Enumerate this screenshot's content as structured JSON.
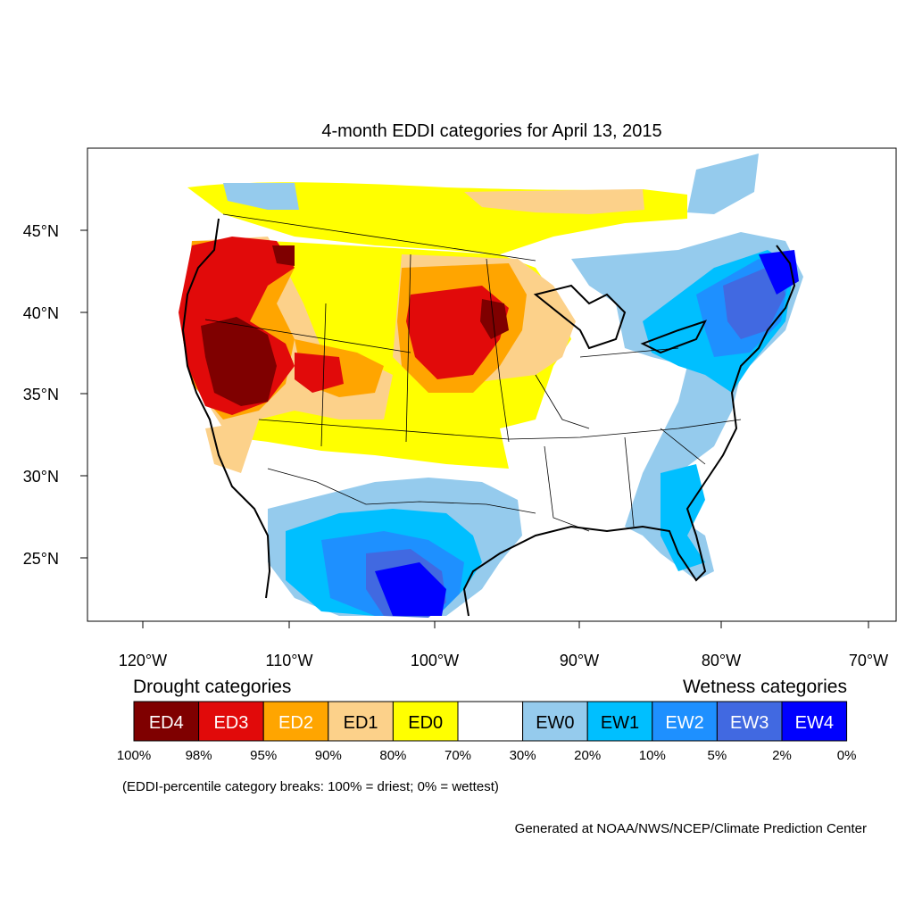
{
  "title": "4-month EDDI categories for April 13, 2015",
  "lat_labels": [
    "45°N",
    "40°N",
    "35°N",
    "30°N",
    "25°N"
  ],
  "lon_labels": [
    "120°W",
    "110°W",
    "100°W",
    "90°W",
    "80°W",
    "70°W"
  ],
  "legend": {
    "drought_heading": "Drought categories",
    "wetness_heading": "Wetness categories",
    "categories": [
      {
        "label": "ED4",
        "color": "#7f0000",
        "text_color": "#ffffff"
      },
      {
        "label": "ED3",
        "color": "#e10a0a",
        "text_color": "#ffffff"
      },
      {
        "label": "ED2",
        "color": "#ffa500",
        "text_color": "#ffffff"
      },
      {
        "label": "ED1",
        "color": "#fcd18a",
        "text_color": "#000000"
      },
      {
        "label": "ED0",
        "color": "#ffff00",
        "text_color": "#000000"
      },
      {
        "label": "",
        "color": "#ffffff",
        "text_color": "#000000"
      },
      {
        "label": "EW0",
        "color": "#95cbed",
        "text_color": "#000000"
      },
      {
        "label": "EW1",
        "color": "#00bfff",
        "text_color": "#000000"
      },
      {
        "label": "EW2",
        "color": "#1e90ff",
        "text_color": "#ffffff"
      },
      {
        "label": "EW3",
        "color": "#4169e1",
        "text_color": "#ffffff"
      },
      {
        "label": "EW4",
        "color": "#0000ff",
        "text_color": "#ffffff"
      }
    ],
    "breaks": [
      "100%",
      "98%",
      "95%",
      "90%",
      "80%",
      "70%",
      "30%",
      "20%",
      "10%",
      "5%",
      "2%",
      "0%"
    ],
    "note": "(EDDI-percentile category breaks: 100% = driest; 0% = wettest)"
  },
  "credit": "Generated at NOAA/NWS/NCEP/Climate Prediction Center"
}
